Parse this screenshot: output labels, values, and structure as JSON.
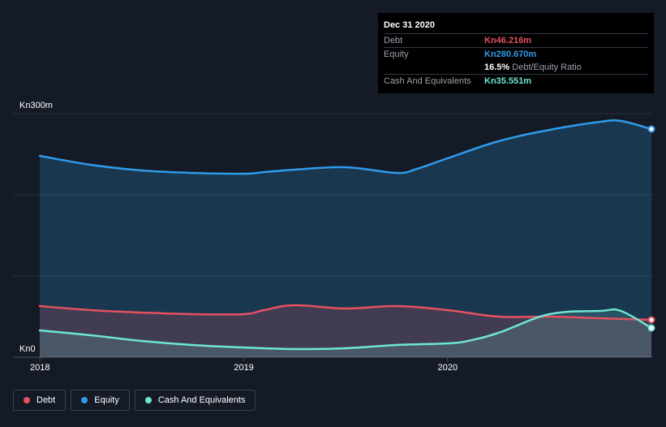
{
  "tooltip": {
    "date": "Dec 31 2020",
    "rows": [
      {
        "label": "Debt",
        "value": "Kn46.216m",
        "color": "#e5515f"
      },
      {
        "label": "Equity",
        "value": "Kn280.670m",
        "color": "#2f9bea"
      },
      {
        "label": "",
        "value": "16.5%",
        "suffix": "Debt/Equity Ratio",
        "color": "#ffffff"
      },
      {
        "label": "Cash And Equivalents",
        "value": "Kn35.551m",
        "color": "#6ee6d2"
      }
    ]
  },
  "legend": [
    {
      "label": "Debt",
      "color": "#e5515f"
    },
    {
      "label": "Equity",
      "color": "#2f9bea"
    },
    {
      "label": "Cash And Equivalents",
      "color": "#6ee6d2"
    }
  ],
  "chart_data": {
    "type": "area",
    "ylim": [
      0,
      300
    ],
    "yticks": [
      {
        "value": 300,
        "label": "Kn300m"
      },
      {
        "value": 0,
        "label": "Kn0"
      }
    ],
    "xlim": [
      2018.0,
      2021.0
    ],
    "xticks": [
      {
        "value": 2018.0,
        "label": "2018"
      },
      {
        "value": 2019.0,
        "label": "2019"
      },
      {
        "value": 2020.0,
        "label": "2020"
      }
    ],
    "grid": true,
    "legend_position": "bottom-left",
    "series": [
      {
        "name": "Equity",
        "color": "#2f9bea",
        "x": [
          2018.0,
          2018.25,
          2018.5,
          2018.75,
          2019.0,
          2019.1,
          2019.25,
          2019.5,
          2019.75,
          2019.85,
          2020.0,
          2020.25,
          2020.5,
          2020.75,
          2020.85,
          2021.0
        ],
        "y": [
          248,
          237,
          230,
          227,
          226,
          228,
          231,
          234,
          227,
          232,
          245,
          266,
          280,
          290,
          291,
          281
        ]
      },
      {
        "name": "Debt",
        "color": "#e5515f",
        "x": [
          2018.0,
          2018.25,
          2018.5,
          2018.75,
          2019.0,
          2019.1,
          2019.25,
          2019.5,
          2019.75,
          2020.0,
          2020.25,
          2020.5,
          2020.75,
          2021.0
        ],
        "y": [
          63,
          58,
          55,
          53,
          53,
          58,
          64,
          60,
          63,
          58,
          50,
          50,
          48,
          46
        ]
      },
      {
        "name": "Cash And Equivalents",
        "color": "#6ee6d2",
        "x": [
          2018.0,
          2018.25,
          2018.5,
          2018.75,
          2019.0,
          2019.25,
          2019.5,
          2019.75,
          2020.0,
          2020.1,
          2020.25,
          2020.5,
          2020.75,
          2020.85,
          2021.0
        ],
        "y": [
          33,
          27,
          20,
          15,
          12,
          10,
          11,
          15,
          17,
          20,
          30,
          53,
          57,
          57,
          36
        ]
      }
    ]
  }
}
